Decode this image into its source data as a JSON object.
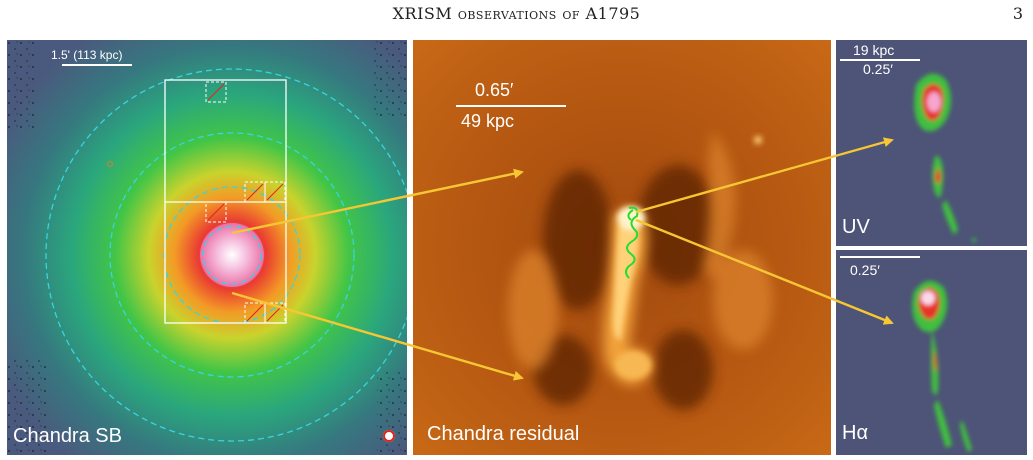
{
  "header": {
    "running_title": "XRISM observations of A1795",
    "page_number": "3"
  },
  "figure": {
    "panels": {
      "surface_brightness": {
        "label": "Chandra  SB",
        "scale_label": "1.5' (113 kpc)"
      },
      "residual": {
        "label": "Chandra residual",
        "scale_angle": "0.65′",
        "scale_distance": "49 kpc"
      },
      "uv": {
        "label": "UV",
        "scale_distance": "19 kpc",
        "scale_angle": "0.25′"
      },
      "halpha": {
        "label": "Hα",
        "scale_angle": "0.25′"
      }
    },
    "colors": {
      "annulus": "#38d4e0",
      "region_box": "#ffffff",
      "arrow": "#f7c634",
      "contour": "#22dd33",
      "sb_background": "#4a5a7e",
      "residual_background": "#b25410",
      "uv_background": "#4d5477"
    }
  }
}
